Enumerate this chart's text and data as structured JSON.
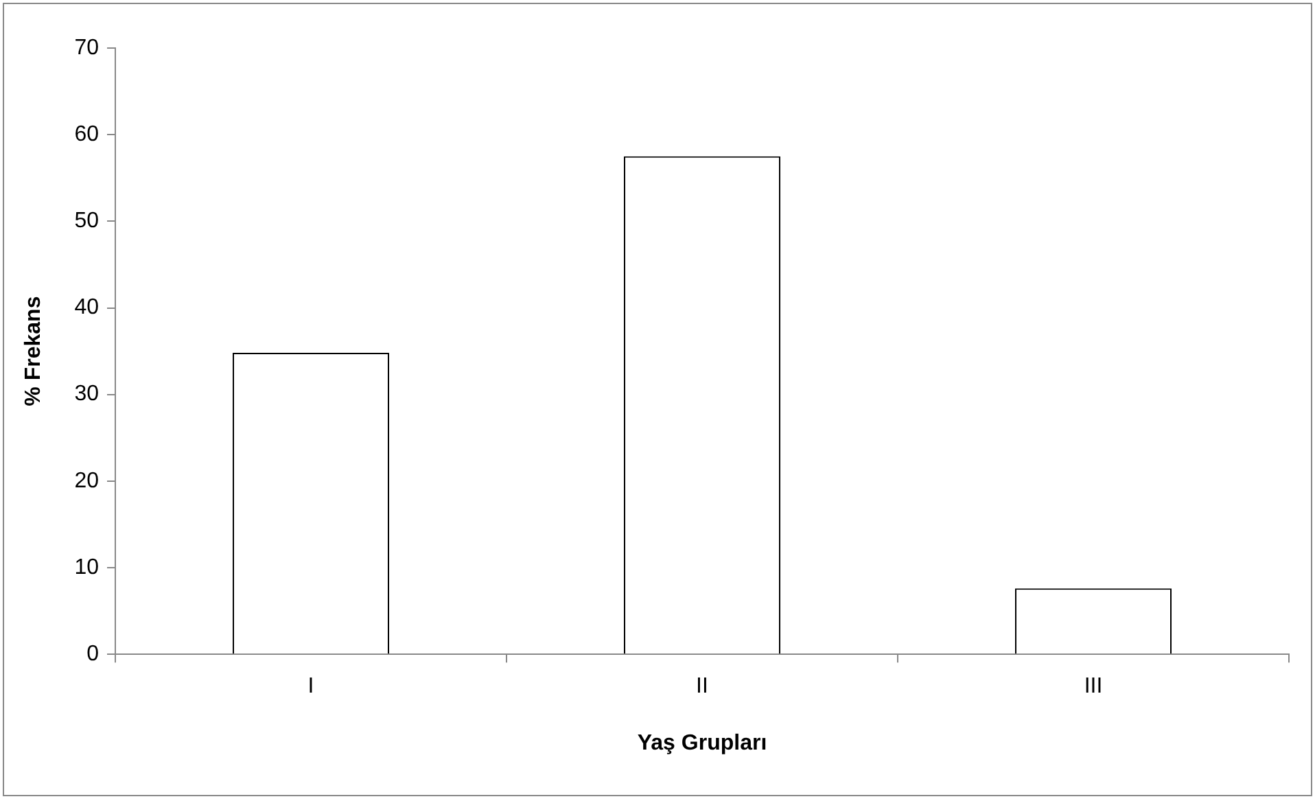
{
  "chart_data": {
    "type": "bar",
    "xlabel": "Yaş Grupları",
    "ylabel": "% Frekans",
    "categories": [
      "I",
      "II",
      "III"
    ],
    "values": [
      34.8,
      57.5,
      7.6
    ],
    "color": "#ffffff",
    "ylim": [
      0,
      70
    ],
    "yticks": [
      0,
      10,
      20,
      30,
      40,
      50,
      60,
      70
    ],
    "grid": false,
    "legend": false
  }
}
